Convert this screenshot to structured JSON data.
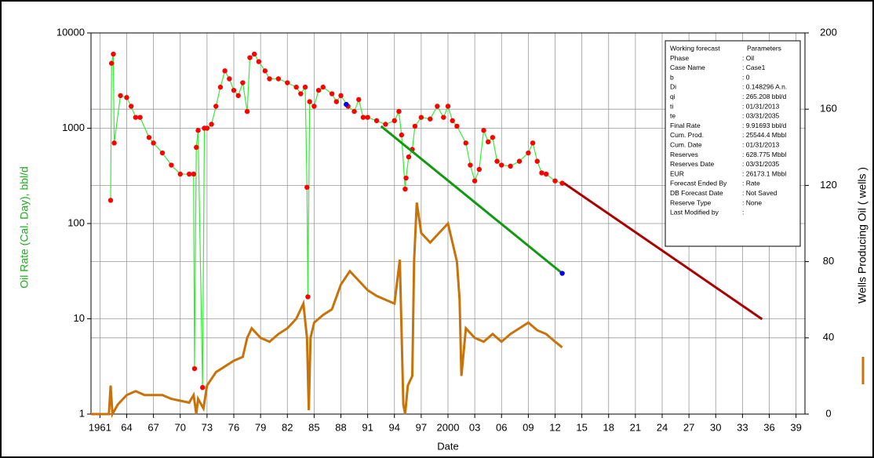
{
  "chart_data": {
    "type": "line",
    "xlabel": "Date",
    "ylabel": "Oil Rate (Cal. Day), bbl/d",
    "ylabel_color": "#22aa22",
    "xlim": [
      1960,
      2040
    ],
    "xticks": [
      {
        "value": 1961,
        "label": "1961"
      },
      {
        "value": 1964,
        "label": "64"
      },
      {
        "value": 1967,
        "label": "67"
      },
      {
        "value": 1970,
        "label": "70"
      },
      {
        "value": 1973,
        "label": "73"
      },
      {
        "value": 1976,
        "label": "76"
      },
      {
        "value": 1979,
        "label": "79"
      },
      {
        "value": 1982,
        "label": "82"
      },
      {
        "value": 1985,
        "label": "85"
      },
      {
        "value": 1988,
        "label": "88"
      },
      {
        "value": 1991,
        "label": "91"
      },
      {
        "value": 1994,
        "label": "94"
      },
      {
        "value": 1997,
        "label": "97"
      },
      {
        "value": 2000,
        "label": "2000"
      },
      {
        "value": 2003,
        "label": "03"
      },
      {
        "value": 2006,
        "label": "06"
      },
      {
        "value": 2009,
        "label": "09"
      },
      {
        "value": 2012,
        "label": "12"
      },
      {
        "value": 2015,
        "label": "15"
      },
      {
        "value": 2018,
        "label": "18"
      },
      {
        "value": 2021,
        "label": "21"
      },
      {
        "value": 2024,
        "label": "24"
      },
      {
        "value": 2027,
        "label": "27"
      },
      {
        "value": 2030,
        "label": "30"
      },
      {
        "value": 2033,
        "label": "33"
      },
      {
        "value": 2036,
        "label": "36"
      },
      {
        "value": 2039,
        "label": "39"
      }
    ],
    "ylim": [
      1,
      10000
    ],
    "yticks": [
      1,
      10,
      100,
      1000,
      10000
    ],
    "ylog": true,
    "y2lim": [
      0,
      200
    ],
    "y2ticks": [
      0,
      40,
      80,
      120,
      160,
      200
    ],
    "grid": true,
    "series": [
      {
        "color": "#ff0000",
        "line_color": "#33ee33",
        "markers": true,
        "x": [
          1962.2,
          1962.3,
          1962.5,
          1962.6,
          1963.3,
          1964,
          1964.5,
          1965,
          1965.5,
          1966.5,
          1967,
          1968,
          1969,
          1970,
          1971,
          1971.5,
          1971.6,
          1971.8,
          1972,
          1972.5,
          1972.7,
          1973,
          1973.5,
          1974,
          1974.5,
          1975,
          1975.5,
          1976,
          1976.5,
          1977,
          1977.5,
          1977.8,
          1978.3,
          1978.8,
          1979.5,
          1980,
          1981,
          1982,
          1983,
          1983.5,
          1984,
          1984.2,
          1984.3,
          1984.5,
          1985,
          1985.5,
          1986,
          1987,
          1987.5,
          1988,
          1988.8,
          1989.5,
          1990,
          1990.5,
          1991,
          1992,
          1993,
          1994,
          1994.5,
          1994.8,
          1995.2,
          1995.3,
          1995.6,
          1996,
          1996.3,
          1997,
          1998,
          1998.8,
          1999.5,
          2000,
          2000.5,
          2001,
          2002,
          2002.5,
          2003,
          2003.5,
          2004,
          2004.5,
          2005,
          2005.5,
          2006,
          2007,
          2008,
          2009,
          2009.5,
          2010,
          2010.5,
          2011,
          2012,
          2012.8
        ],
        "values": [
          175,
          4800,
          6000,
          700,
          2200,
          2100,
          1700,
          1300,
          1300,
          800,
          700,
          550,
          410,
          330,
          330,
          330,
          3,
          630,
          950,
          1.9,
          1000,
          1000,
          1100,
          1700,
          2700,
          4000,
          3300,
          2500,
          2200,
          3000,
          1500,
          5500,
          6000,
          5000,
          4000,
          3300,
          3300,
          3000,
          2700,
          2300,
          2700,
          240,
          17,
          1900,
          1700,
          2500,
          2700,
          2300,
          1900,
          2200,
          1700,
          1500,
          2000,
          1300,
          1300,
          1200,
          1100,
          1200,
          1500,
          850,
          230,
          300,
          500,
          600,
          1050,
          1300,
          1250,
          1700,
          1300,
          1700,
          1200,
          1050,
          700,
          410,
          280,
          370,
          950,
          720,
          800,
          450,
          410,
          400,
          450,
          550,
          700,
          450,
          340,
          330,
          280,
          265
        ]
      },
      {
        "color": "#119911",
        "line_width": 3,
        "x": [
          1992.5,
          2012.8
        ],
        "values": [
          1050,
          30
        ]
      },
      {
        "color": "#0000ee",
        "markers": true,
        "marker_only": true,
        "x": [
          1988.6,
          2012.8
        ],
        "values": [
          1780,
          30
        ]
      },
      {
        "color": "#aa0000",
        "line_width": 3,
        "x": [
          2013,
          2035.2
        ],
        "values": [
          265,
          9.9
        ]
      },
      {
        "name": "Wells Producing Oil ( wells )",
        "axis": "y2",
        "color": "#c8720a",
        "line_width": 3,
        "x": [
          1960,
          1962,
          1962.2,
          1962.4,
          1963,
          1964,
          1965,
          1966,
          1968,
          1969,
          1970,
          1971,
          1971.5,
          1971.8,
          1972,
          1972.6,
          1973,
          1974,
          1975,
          1976,
          1977,
          1977.5,
          1978,
          1979,
          1980,
          1981,
          1982,
          1983,
          1983.8,
          1984.2,
          1984.4,
          1984.6,
          1985,
          1986,
          1987,
          1988,
          1989,
          1990,
          1991,
          1992,
          1993,
          1994,
          1994.6,
          1995,
          1995.2,
          1995.5,
          1996,
          1996.2,
          1996.5,
          1997,
          1998,
          1999,
          2000,
          2000.5,
          2001,
          2001.3,
          2001.5,
          2002,
          2003,
          2004,
          2005,
          2006,
          2007,
          2008,
          2009,
          2010,
          2011,
          2012,
          2012.8
        ],
        "values": [
          0,
          0,
          15,
          0,
          5,
          10,
          12,
          10,
          10,
          8,
          7,
          6,
          10,
          0,
          8,
          3,
          15,
          22,
          25,
          28,
          30,
          40,
          45,
          40,
          38,
          42,
          45,
          50,
          58,
          40,
          2,
          40,
          48,
          52,
          55,
          68,
          75,
          70,
          65,
          62,
          60,
          58,
          81,
          5,
          0,
          15,
          20,
          80,
          111,
          95,
          90,
          95,
          100,
          90,
          80,
          60,
          20,
          45,
          40,
          38,
          42,
          38,
          42,
          45,
          48,
          44,
          42,
          38,
          35
        ]
      }
    ],
    "parameters_title": [
      "Working forecast",
      "Parameters"
    ],
    "parameters": [
      [
        "Phase",
        ": Oil"
      ],
      [
        "Case Name",
        ": Case1"
      ],
      [
        "b",
        ": 0"
      ],
      [
        "Di",
        ": 0.148296 A.n."
      ],
      [
        "qi",
        ": 265.208 bbl/d"
      ],
      [
        "ti",
        ": 01/31/2013"
      ],
      [
        "te",
        ": 03/31/2035"
      ],
      [
        "Final Rate",
        ": 9.91693 bbl/d"
      ],
      [
        "Cum. Prod.",
        ": 25544.4 Mbbl"
      ],
      [
        "Cum. Date",
        ": 01/31/2013"
      ],
      [
        "Reserves",
        ": 628.775 Mbbl"
      ],
      [
        "Reserves Date",
        ": 03/31/2035"
      ],
      [
        "EUR",
        ": 26173.1 Mbbl"
      ],
      [
        "Forecast Ended By",
        ": Rate"
      ],
      [
        "DB Forecast Date",
        ": Not Saved"
      ],
      [
        "Reserve Type",
        ": None"
      ],
      [
        "Last Modified by",
        ":"
      ]
    ]
  }
}
